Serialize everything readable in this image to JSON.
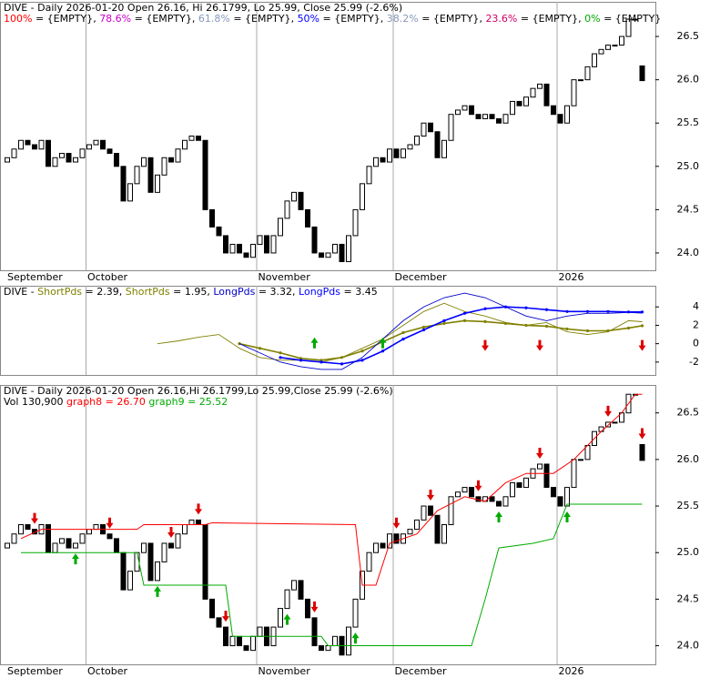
{
  "chart_data": [
    {
      "type": "candlestick",
      "title": "DIVE - Daily 2026-01-20 Open 26.16, Hi 26.1799, Lo 25.99, Close 25.99 (-2.6%)",
      "fib_value": "{EMPTY}",
      "fib_labels": [
        {
          "name": "100%",
          "color": "#ff0000"
        },
        {
          "name": "78.6%",
          "color": "#cc00cc"
        },
        {
          "name": "61.8%",
          "color": "#8899bb"
        },
        {
          "name": "50%",
          "color": "#0000ff"
        },
        {
          "name": "38.2%",
          "color": "#8899bb"
        },
        {
          "name": "23.6%",
          "color": "#cc0066"
        },
        {
          "name": "0%",
          "color": "#00aa00"
        }
      ],
      "categories": [
        "September",
        null,
        null,
        null,
        null,
        null,
        null,
        null,
        null,
        null,
        null,
        null,
        "October",
        null,
        null,
        null,
        null,
        null,
        null,
        null,
        null,
        null,
        null,
        null,
        null,
        null,
        null,
        null,
        null,
        null,
        null,
        null,
        null,
        null,
        null,
        null,
        null,
        "November",
        null,
        null,
        null,
        null,
        null,
        null,
        null,
        null,
        null,
        null,
        null,
        null,
        null,
        null,
        null,
        null,
        null,
        null,
        null,
        "December",
        null,
        null,
        null,
        null,
        null,
        null,
        null,
        null,
        null,
        null,
        null,
        null,
        null,
        null,
        null,
        null,
        null,
        null,
        null,
        null,
        null,
        null,
        null,
        "2026",
        null,
        null,
        null,
        null,
        null,
        null,
        null,
        null,
        null,
        null,
        null,
        null
      ],
      "open": [
        25.05,
        25.1,
        25.2,
        25.3,
        25.25,
        25.2,
        25.3,
        25.0,
        25.1,
        25.15,
        25.05,
        25.1,
        25.2,
        25.25,
        25.3,
        25.2,
        25.15,
        25.0,
        24.6,
        24.8,
        25.0,
        25.1,
        24.7,
        24.9,
        25.1,
        25.05,
        25.2,
        25.3,
        25.35,
        25.3,
        24.5,
        24.3,
        24.2,
        24.0,
        24.1,
        24.0,
        23.95,
        24.1,
        24.2,
        24.0,
        24.2,
        24.4,
        24.6,
        24.7,
        24.5,
        24.3,
        24.0,
        23.95,
        24.0,
        24.1,
        23.9,
        24.2,
        24.5,
        24.8,
        25.0,
        25.1,
        25.05,
        25.2,
        25.1,
        25.2,
        25.25,
        25.35,
        25.5,
        25.4,
        25.1,
        25.3,
        25.6,
        25.65,
        25.7,
        25.6,
        25.55,
        25.6,
        25.55,
        25.5,
        25.6,
        25.75,
        25.7,
        25.8,
        25.9,
        25.95,
        25.7,
        25.6,
        25.5,
        25.7,
        26.0,
        26.0,
        26.15,
        26.3,
        26.35,
        26.4,
        26.4,
        26.5,
        26.7,
        26.16
      ],
      "close": [
        25.1,
        25.2,
        25.3,
        25.25,
        25.2,
        25.3,
        25.0,
        25.1,
        25.15,
        25.05,
        25.1,
        25.2,
        25.25,
        25.3,
        25.2,
        25.15,
        25.0,
        24.6,
        24.8,
        25.0,
        25.1,
        24.7,
        24.9,
        25.1,
        25.05,
        25.2,
        25.3,
        25.35,
        25.3,
        24.5,
        24.3,
        24.2,
        24.0,
        24.1,
        24.0,
        23.95,
        24.1,
        24.2,
        24.0,
        24.2,
        24.4,
        24.6,
        24.7,
        24.5,
        24.3,
        24.0,
        23.95,
        24.0,
        24.1,
        23.9,
        24.2,
        24.5,
        24.8,
        25.0,
        25.1,
        25.05,
        25.2,
        25.1,
        25.2,
        25.25,
        25.35,
        25.5,
        25.4,
        25.1,
        25.3,
        25.6,
        25.65,
        25.7,
        25.6,
        25.55,
        25.6,
        25.55,
        25.5,
        25.6,
        25.75,
        25.7,
        25.8,
        25.9,
        25.95,
        25.7,
        25.6,
        25.5,
        25.7,
        26.0,
        26.0,
        26.15,
        26.3,
        26.35,
        26.4,
        26.4,
        26.5,
        26.7,
        26.7,
        25.99
      ],
      "ylim": [
        23.8,
        26.9
      ],
      "yticks": [
        {
          "value": 24.0,
          "label": "24.0"
        },
        {
          "value": 24.5,
          "label": "24.5"
        },
        {
          "value": 25.0,
          "label": "25.0"
        },
        {
          "value": 25.5,
          "label": "25.5"
        },
        {
          "value": 26.0,
          "label": "26.0"
        },
        {
          "value": 26.5,
          "label": "26.5"
        }
      ]
    },
    {
      "type": "line",
      "title": "DIVE",
      "x": [
        22,
        25,
        28,
        31,
        34,
        37,
        40,
        43,
        46,
        49,
        52,
        55,
        58,
        61,
        64,
        67,
        70,
        73,
        76,
        79,
        82,
        85,
        88,
        91,
        93
      ],
      "series": [
        {
          "name": "ShortPds",
          "value_label": "2.39",
          "color": "#808000",
          "dotted": false,
          "values": [
            0,
            0.3,
            0.7,
            1.0,
            -0.5,
            -1.5,
            -1.8,
            -1.8,
            -2.0,
            -1.5,
            -0.5,
            0.5,
            2.0,
            3.5,
            4.4,
            3.5,
            3.0,
            2.3,
            2.0,
            2.3,
            1.3,
            1.0,
            1.3,
            2.5,
            2.39
          ]
        },
        {
          "name": "ShortPds",
          "value_label": "1.95",
          "color": "#808000",
          "dotted": true,
          "values": [
            null,
            null,
            null,
            null,
            0,
            -0.5,
            -1.0,
            -1.6,
            -1.8,
            -1.5,
            -0.8,
            0.2,
            1.2,
            1.8,
            2.2,
            2.5,
            2.4,
            2.2,
            2.0,
            1.9,
            1.6,
            1.4,
            1.4,
            1.7,
            1.95
          ]
        },
        {
          "name": "LongPds",
          "value_label": "3.32",
          "color": "#0000cc",
          "dotted": false,
          "values": [
            null,
            null,
            null,
            null,
            0,
            -1,
            -2,
            -2.5,
            -2.8,
            -2.8,
            -1.5,
            0.5,
            2.5,
            4.0,
            5.0,
            5.5,
            5.0,
            4.0,
            3.0,
            2.5,
            3.0,
            3.3,
            3.3,
            3.4,
            3.32
          ]
        },
        {
          "name": "LongPds",
          "value_label": "3.45",
          "color": "#0000ff",
          "dotted": true,
          "values": [
            null,
            null,
            null,
            null,
            null,
            null,
            -1.5,
            -1.8,
            -2.0,
            -2.2,
            -1.8,
            -0.8,
            0.5,
            1.5,
            2.5,
            3.3,
            3.8,
            4.0,
            3.9,
            3.7,
            3.5,
            3.5,
            3.5,
            3.45,
            3.45
          ]
        }
      ],
      "buy_signals": [
        45,
        55
      ],
      "sell_signals": [
        70,
        78,
        93
      ],
      "ylim": [
        -3.4,
        6.3
      ],
      "yticks": [
        -2,
        0,
        2,
        4
      ]
    },
    {
      "type": "candlestick",
      "title": "DIVE - Daily 2026-01-20 Open 26.16,Hi 26.1799,Lo 25.99,Close 25.99 (-2.6%)",
      "volume_label": "Vol 130,900",
      "lines": [
        {
          "name": "graph8",
          "value_label": "26.70",
          "color": "#ff0000",
          "x": [
            2,
            5,
            19,
            20,
            29,
            30,
            51,
            52,
            54,
            56,
            60,
            63,
            67,
            70,
            73,
            76,
            80,
            83,
            87,
            90,
            92,
            93
          ],
          "values": [
            25.15,
            25.25,
            25.25,
            25.3,
            25.3,
            25.32,
            25.3,
            24.65,
            24.65,
            25.1,
            25.2,
            25.45,
            25.6,
            25.55,
            25.75,
            25.85,
            25.85,
            26.0,
            26.3,
            26.5,
            26.7,
            26.7
          ]
        },
        {
          "name": "graph9",
          "value_label": "25.52",
          "color": "#00aa00",
          "x": [
            2,
            19,
            20,
            32,
            33,
            46,
            47,
            68,
            70,
            72,
            77,
            80,
            82,
            93
          ],
          "values": [
            25.0,
            25.0,
            24.65,
            24.65,
            24.1,
            24.1,
            24.0,
            24.0,
            24.5,
            25.05,
            25.1,
            25.15,
            25.52,
            25.52
          ]
        }
      ],
      "buy_signals": [
        10,
        22,
        41,
        51,
        72,
        82
      ],
      "sell_signals": [
        4,
        15,
        24,
        28,
        32,
        45,
        57,
        62,
        69,
        78,
        88,
        93
      ],
      "ylim": [
        23.8,
        26.8
      ],
      "yticks": [
        {
          "value": 24.0,
          "label": "24.0"
        },
        {
          "value": 24.5,
          "label": "24.5"
        },
        {
          "value": 25.0,
          "label": "25.0"
        },
        {
          "value": 25.5,
          "label": "25.5"
        },
        {
          "value": 26.0,
          "label": "26.0"
        },
        {
          "value": 26.5,
          "label": "26.5"
        }
      ]
    }
  ]
}
